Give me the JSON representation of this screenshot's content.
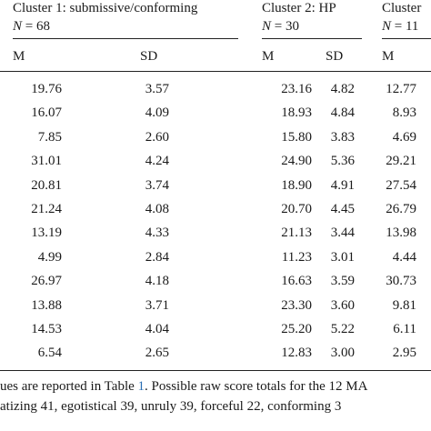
{
  "table": {
    "groups": [
      {
        "label": "Cluster 1: submissive/conforming",
        "n_label": "N",
        "n_value": "= 68"
      },
      {
        "label": "Cluster 2: HP",
        "n_label": "N",
        "n_value": "= 30"
      },
      {
        "label": "Cluster",
        "n_label": "N",
        "n_value": "= 11"
      }
    ],
    "subheaders": [
      "M",
      "SD",
      "M",
      "SD",
      "M"
    ],
    "rows": [
      [
        "19.76",
        "3.57",
        "23.16",
        "4.82",
        "12.77"
      ],
      [
        "16.07",
        "4.09",
        "18.93",
        "4.84",
        "8.93"
      ],
      [
        "7.85",
        "2.60",
        "15.80",
        "3.83",
        "4.69"
      ],
      [
        "31.01",
        "4.24",
        "24.90",
        "5.36",
        "29.21"
      ],
      [
        "20.81",
        "3.74",
        "18.90",
        "4.91",
        "27.54"
      ],
      [
        "21.24",
        "4.08",
        "20.70",
        "4.45",
        "26.79"
      ],
      [
        "13.19",
        "4.33",
        "21.13",
        "3.44",
        "13.98"
      ],
      [
        "4.99",
        "2.84",
        "11.23",
        "3.01",
        "4.44"
      ],
      [
        "26.97",
        "4.18",
        "16.63",
        "3.59",
        "30.73"
      ],
      [
        "13.88",
        "3.71",
        "23.30",
        "3.60",
        "9.81"
      ],
      [
        "14.53",
        "4.04",
        "25.20",
        "5.22",
        "6.11"
      ],
      [
        "6.54",
        "2.65",
        "12.83",
        "3.00",
        "2.95"
      ]
    ]
  },
  "footnote": {
    "line1_pre": "ues are reported in Table ",
    "line1_link": "1",
    "line1_post": ". Possible raw score totals for the 12 MA",
    "line2": "atizing 41, egotistical 39, unruly 39, forceful 22, conforming 3"
  }
}
